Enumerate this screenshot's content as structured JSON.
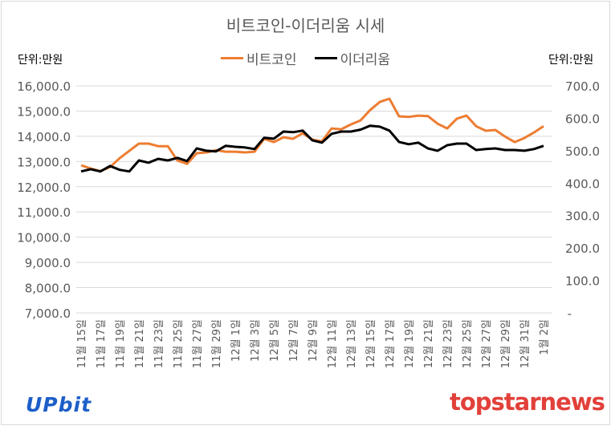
{
  "chart_data": {
    "type": "line",
    "title": "비트코인-이더리움 시세",
    "left_unit": "단위:만원",
    "right_unit": "단위:만원",
    "legend_position": "top",
    "grid": true,
    "y_left": {
      "lim": [
        7000,
        16000
      ],
      "ticks": [
        "16,000.0",
        "15,000.0",
        "14,000.0",
        "13,000.0",
        "12,000.0",
        "11,000.0",
        "10,000.0",
        "9,000.0",
        "8,000.0",
        "7,000.0"
      ]
    },
    "y_right": {
      "lim": [
        0,
        700
      ],
      "ticks": [
        "700.0",
        "600.0",
        "500.0",
        "400.0",
        "300.0",
        "200.0",
        "100.0",
        "-"
      ]
    },
    "x_tick_labels": [
      "11월 15일",
      "11월 17일",
      "11월 19일",
      "11월 21일",
      "11월 23일",
      "11월 25일",
      "11월 27일",
      "11월 29일",
      "12월 1일",
      "12월 3일",
      "12월 5일",
      "12월 7일",
      "12월 9일",
      "12월 11일",
      "12월 13일",
      "12월 15일",
      "12월 17일",
      "12월 19일",
      "12월 21일",
      "12월 23일",
      "12월 25일",
      "12월 27일",
      "12월 29일",
      "12월 31일",
      "1월 2일"
    ],
    "series": [
      {
        "name": "비트코인",
        "axis": "left",
        "color": "#ed7d31",
        "values": [
          12850,
          12720,
          12620,
          12780,
          13130,
          13420,
          13710,
          13710,
          13610,
          13610,
          13040,
          12910,
          13330,
          13360,
          13450,
          13390,
          13390,
          13360,
          13390,
          13900,
          13770,
          13960,
          13900,
          14120,
          13870,
          13800,
          14310,
          14280,
          14470,
          14630,
          15040,
          15360,
          15490,
          14790,
          14770,
          14820,
          14800,
          14500,
          14310,
          14700,
          14820,
          14400,
          14220,
          14250,
          13990,
          13770,
          13930,
          14150,
          14400
        ]
      },
      {
        "name": "이더리움",
        "axis": "right",
        "color": "#000000",
        "values": [
          436,
          443,
          436,
          453,
          441,
          436,
          470,
          463,
          475,
          470,
          478,
          468,
          507,
          500,
          498,
          515,
          512,
          510,
          505,
          540,
          537,
          559,
          557,
          562,
          532,
          525,
          552,
          559,
          559,
          565,
          577,
          574,
          562,
          527,
          520,
          525,
          507,
          500,
          517,
          522,
          522,
          502,
          505,
          507,
          502,
          502,
          500,
          505,
          515
        ]
      }
    ]
  },
  "logos": {
    "left": "UPbit",
    "right": "topstarnews"
  }
}
